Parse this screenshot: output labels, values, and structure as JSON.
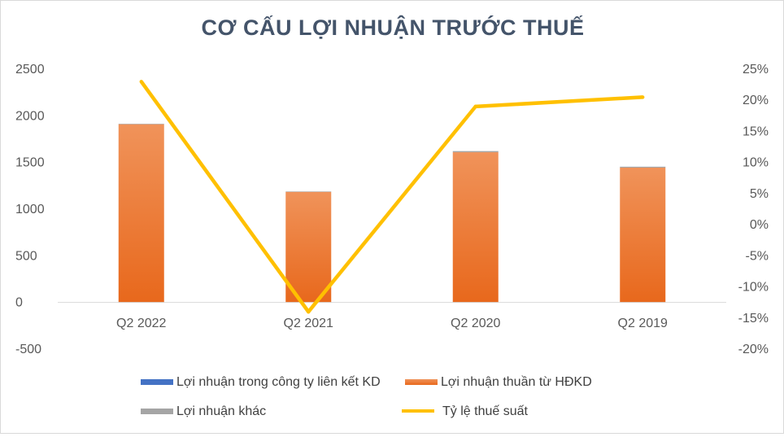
{
  "chart_data": {
    "type": "bar",
    "title": "CƠ CẤU LỢI NHUẬN TRƯỚC THUẾ",
    "categories": [
      "Q2 2022",
      "Q2 2021",
      "Q2 2020",
      "Q2 2019"
    ],
    "y_left": {
      "min": -500,
      "max": 2500,
      "ticks": [
        -500,
        0,
        500,
        1000,
        1500,
        2000,
        2500
      ],
      "tick_labels": [
        "-500",
        "0",
        "500",
        "1000",
        "1500",
        "2000",
        "2500"
      ]
    },
    "y_right": {
      "min": -0.2,
      "max": 0.25,
      "ticks": [
        -0.2,
        -0.15,
        -0.1,
        -0.05,
        0,
        0.05,
        0.1,
        0.15,
        0.2,
        0.25
      ],
      "tick_labels": [
        "-20%",
        "-15%",
        "-10%",
        "-5%",
        "0%",
        "5%",
        "10%",
        "15%",
        "20%",
        "25%"
      ]
    },
    "series": [
      {
        "name": "Lợi nhuận trong công ty liên kết KD",
        "kind": "stacked-bar",
        "color": "#4472c4",
        "values": [
          0,
          0,
          0,
          0
        ]
      },
      {
        "name": "Lợi nhuận thuần từ HĐKD",
        "kind": "stacked-bar",
        "color": "#ed7d31",
        "values": [
          1910,
          1185,
          1610,
          1445
        ]
      },
      {
        "name": "Lợi nhuận khác",
        "kind": "stacked-bar",
        "color": "#a5a5a5",
        "values": [
          5,
          5,
          12,
          10
        ]
      },
      {
        "name": "Tỷ lệ thuế suất",
        "kind": "line",
        "axis": "right",
        "color": "#ffc000",
        "values": [
          0.23,
          -0.14,
          0.19,
          0.205
        ]
      }
    ],
    "legend_position": "bottom",
    "grid": false
  }
}
